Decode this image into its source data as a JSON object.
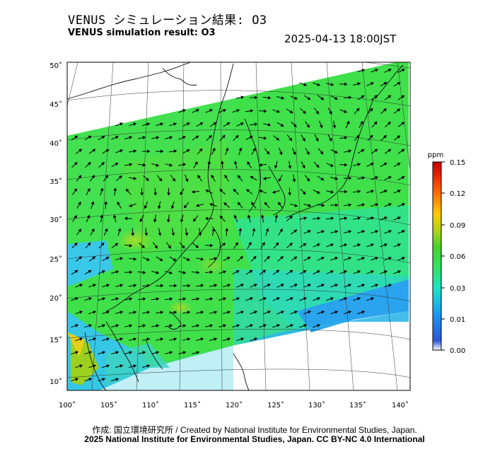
{
  "header": {
    "title_ja": "VENUS シミュレーション結果: O3",
    "title_en": "VENUS simulation result: O3",
    "timestamp": "2025-04-13 18:00JST"
  },
  "map": {
    "lat_ticks": [
      "50˚",
      "45˚",
      "40˚",
      "35˚",
      "30˚",
      "25˚",
      "20˚",
      "15˚",
      "10˚"
    ],
    "lon_ticks": [
      "100˚",
      "105˚",
      "110˚",
      "115˚",
      "120˚",
      "125˚",
      "130˚",
      "135˚",
      "140˚"
    ],
    "lat_values": [
      50,
      45,
      40,
      35,
      30,
      25,
      20,
      15,
      10
    ],
    "lon_values": [
      100,
      105,
      110,
      115,
      120,
      125,
      130,
      135,
      140
    ],
    "field": "O3",
    "vector_layer": "wind"
  },
  "colorbar": {
    "unit": "ppm",
    "ticks": [
      "0.15",
      "0.12",
      "0.09",
      "0.06",
      "0.03",
      "0.01",
      "0.00"
    ],
    "values": [
      0.15,
      0.12,
      0.09,
      0.06,
      0.03,
      0.01,
      0.0
    ],
    "colors": [
      "#ffffff",
      "#2a56d8",
      "#1a9df2",
      "#1fe5c6",
      "#32e25a",
      "#4ad22a",
      "#9fd41e",
      "#ffcc00",
      "#ff7a00",
      "#ee2a00",
      "#c40000"
    ]
  },
  "footer": {
    "credit": "作成: 国立環境研究所 / Created by National Institute for Environmental Studies, Japan.",
    "license": "2025 National Institute for Environmental Studies, Japan. CC BY-NC 4.0 International"
  }
}
